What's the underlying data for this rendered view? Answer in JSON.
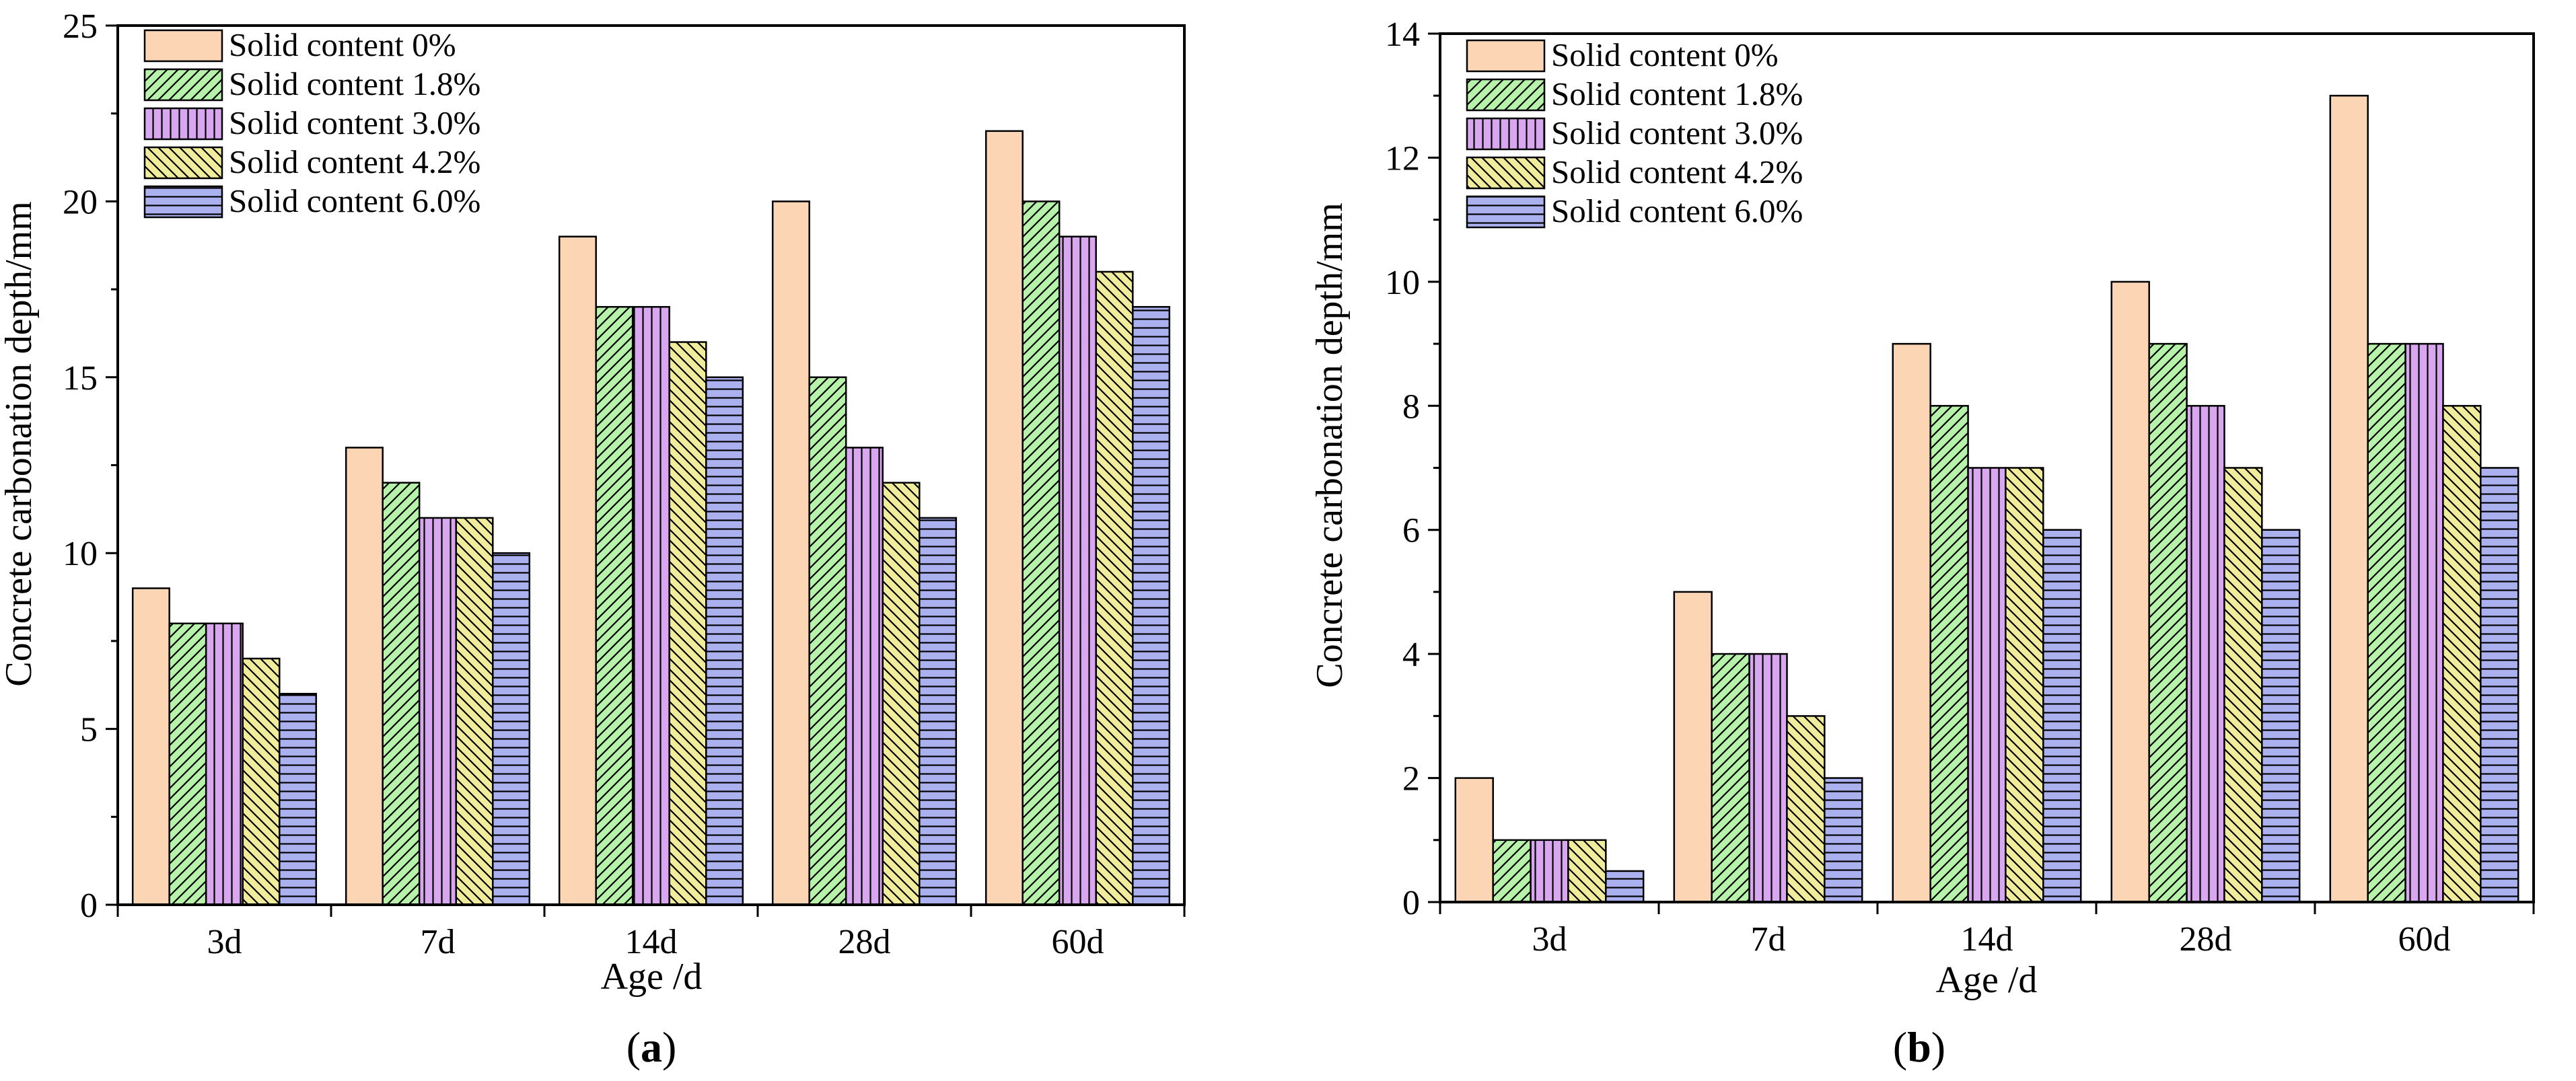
{
  "chart_data": [
    {
      "type": "bar",
      "panel_label": "a",
      "title": "",
      "xlabel": "Age /d",
      "ylabel": "Concrete carbonation depth/mm",
      "categories": [
        "3d",
        "7d",
        "14d",
        "28d",
        "60d"
      ],
      "ylim": [
        0,
        25
      ],
      "yticks": [
        0,
        5,
        10,
        15,
        20,
        25
      ],
      "legend_position": "top-left",
      "series": [
        {
          "name": "Solid content 0%",
          "values": [
            9,
            13,
            19,
            20,
            22
          ]
        },
        {
          "name": "Solid content 1.8%",
          "values": [
            8,
            12,
            17,
            15,
            20
          ]
        },
        {
          "name": "Solid content 3.0%",
          "values": [
            8,
            11,
            17,
            13,
            19
          ]
        },
        {
          "name": "Solid content 4.2%",
          "values": [
            7,
            11,
            16,
            12,
            18
          ]
        },
        {
          "name": "Solid content 6.0%",
          "values": [
            6,
            10,
            15,
            11,
            17
          ]
        }
      ]
    },
    {
      "type": "bar",
      "panel_label": "b",
      "title": "",
      "xlabel": "Age /d",
      "ylabel": "Concrete carbonation depth/mm",
      "categories": [
        "3d",
        "7d",
        "14d",
        "28d",
        "60d"
      ],
      "ylim": [
        0,
        14
      ],
      "yticks": [
        0,
        2,
        4,
        6,
        8,
        10,
        12,
        14
      ],
      "legend_position": "top-left",
      "series": [
        {
          "name": "Solid content 0%",
          "values": [
            2,
            5,
            9,
            10,
            13
          ]
        },
        {
          "name": "Solid content 1.8%",
          "values": [
            1,
            4,
            8,
            9,
            9
          ]
        },
        {
          "name": "Solid content 3.0%",
          "values": [
            1,
            4,
            7,
            8,
            9
          ]
        },
        {
          "name": "Solid content 4.2%",
          "values": [
            1,
            3,
            7,
            7,
            8
          ]
        },
        {
          "name": "Solid content 6.0%",
          "values": [
            0.5,
            2,
            6,
            6,
            7
          ]
        }
      ]
    }
  ],
  "series_styles": [
    {
      "fill": "#fcd5b5",
      "pattern": "solid"
    },
    {
      "fill": "#b6f2a9",
      "pattern": "diag-right"
    },
    {
      "fill": "#d8a7f0",
      "pattern": "vertical"
    },
    {
      "fill": "#f1ec9c",
      "pattern": "diag-left"
    },
    {
      "fill": "#aab1ee",
      "pattern": "horizontal"
    }
  ]
}
